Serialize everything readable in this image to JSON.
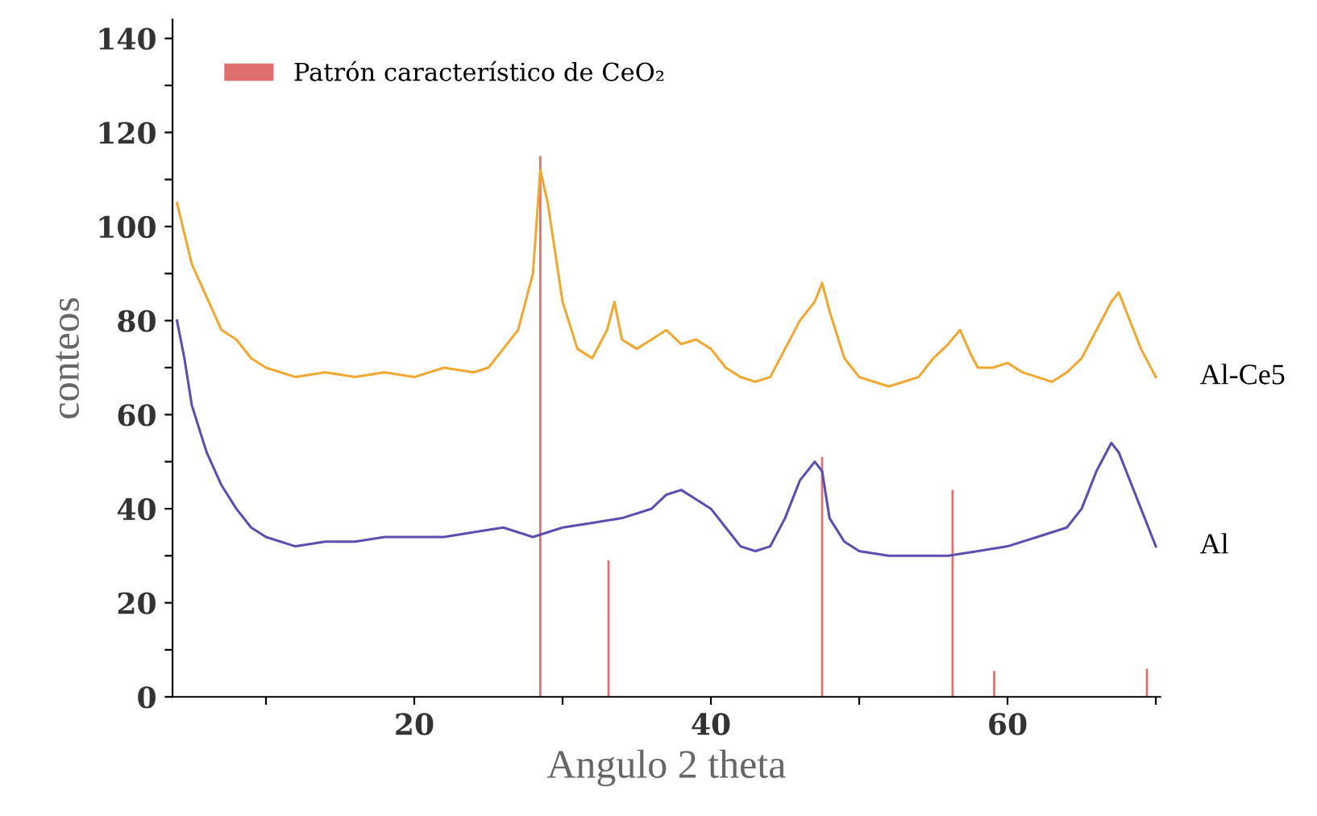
{
  "chart_data": {
    "type": "line",
    "xlabel": "Angulo 2 theta",
    "ylabel": "conteos",
    "xlim": [
      3.7,
      70.3
    ],
    "xticks": [
      {
        "value": 10,
        "label": null
      },
      20,
      {
        "value": 30,
        "label": null
      },
      40,
      {
        "value": 50,
        "label": null
      },
      60,
      {
        "value": 70,
        "label": null
      }
    ],
    "ylim": [
      0,
      144
    ],
    "yticks": [
      0,
      {
        "value": 10,
        "label": null
      },
      20,
      {
        "value": 30,
        "label": null
      },
      40,
      {
        "value": 50,
        "label": null
      },
      60,
      {
        "value": 70,
        "label": null
      },
      80,
      {
        "value": 90,
        "label": null
      },
      100,
      {
        "value": 110,
        "label": null
      },
      120,
      {
        "value": 130,
        "label": null
      },
      140
    ],
    "grid": false,
    "legend": "top left",
    "marker": "none",
    "line_style": "solid",
    "series": [
      {
        "name": "Al-Ce5",
        "color": "#f0a830",
        "x": [
          4,
          5,
          6,
          7,
          8,
          9,
          10,
          12,
          14,
          16,
          18,
          20,
          22,
          24,
          25,
          26,
          27,
          28,
          28.5,
          29,
          30,
          31,
          32,
          33,
          33.5,
          34,
          35,
          36,
          37,
          38,
          39,
          40,
          41,
          42,
          43,
          44,
          45,
          46,
          47,
          47.5,
          48,
          49,
          50,
          51,
          52,
          53,
          54,
          55,
          56,
          56.8,
          57.5,
          58,
          59,
          60,
          61,
          62,
          63,
          64,
          65,
          66,
          67,
          67.5,
          68,
          69,
          70
        ],
        "values": [
          105,
          92,
          85,
          78,
          76,
          72,
          70,
          68,
          69,
          68,
          69,
          68,
          70,
          69,
          70,
          74,
          78,
          90,
          112,
          105,
          84,
          74,
          72,
          78,
          84,
          76,
          74,
          76,
          78,
          75,
          76,
          74,
          70,
          68,
          67,
          68,
          74,
          80,
          84,
          88,
          82,
          72,
          68,
          67,
          66,
          67,
          68,
          72,
          75,
          78,
          73,
          70,
          70,
          71,
          69,
          68,
          67,
          69,
          72,
          78,
          84,
          86,
          82,
          74,
          68
        ]
      },
      {
        "name": "Al",
        "color": "#5a4fb0",
        "x": [
          4,
          4.5,
          5,
          6,
          7,
          8,
          9,
          10,
          12,
          14,
          16,
          18,
          20,
          22,
          24,
          26,
          28,
          30,
          32,
          34,
          36,
          37,
          38,
          39,
          40,
          41,
          42,
          43,
          44,
          45,
          46,
          47,
          47.5,
          48,
          49,
          50,
          52,
          54,
          56,
          58,
          60,
          62,
          64,
          65,
          66,
          67,
          67.5,
          68,
          69,
          70
        ],
        "values": [
          80,
          72,
          62,
          52,
          45,
          40,
          36,
          34,
          32,
          33,
          33,
          34,
          34,
          34,
          35,
          36,
          34,
          36,
          37,
          38,
          40,
          43,
          44,
          42,
          40,
          36,
          32,
          31,
          32,
          38,
          46,
          50,
          48,
          38,
          33,
          31,
          30,
          30,
          30,
          31,
          32,
          34,
          36,
          40,
          48,
          54,
          52,
          48,
          40,
          32
        ]
      },
      {
        "name": "Patrón característico de CeO₂",
        "type": "bar",
        "color": "#e07070",
        "x": [
          28.5,
          33.1,
          47.5,
          56.3,
          59.1,
          69.4
        ],
        "values": [
          115,
          29,
          51,
          44,
          5.5,
          6
        ]
      }
    ]
  }
}
